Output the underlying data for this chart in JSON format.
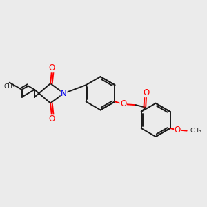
{
  "bg_color": "#ebebeb",
  "bond_color": "#1a1a1a",
  "bond_width": 1.4,
  "atom_colors": {
    "O": "#ff0000",
    "N": "#0000ee",
    "C": "#1a1a1a"
  },
  "font_size_atom": 8.5,
  "figsize": [
    3.0,
    3.0
  ],
  "dpi": 100
}
